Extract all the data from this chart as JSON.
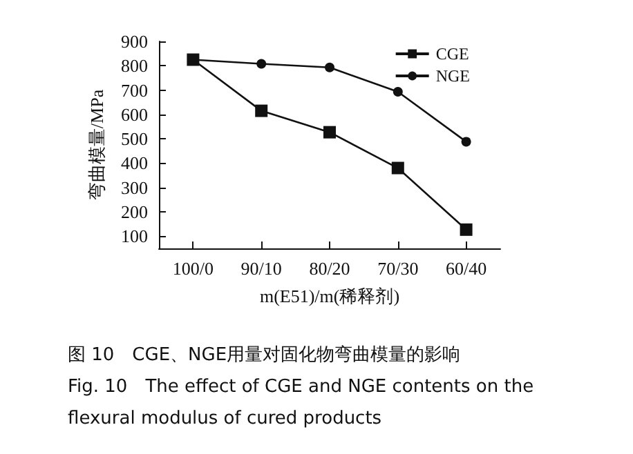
{
  "chart_data": {
    "type": "line",
    "xlabel": "m(E51)/m(稀释剂)",
    "ylabel": "弯曲模量/MPa",
    "categories": [
      "100/0",
      "90/10",
      "80/20",
      "70/30",
      "60/40"
    ],
    "series": [
      {
        "name": "CGE",
        "color": "#111111",
        "marker": "square",
        "values": [
          825,
          615,
          527,
          380,
          127
        ]
      },
      {
        "name": "NGE",
        "color": "#111111",
        "marker": "circle",
        "values": [
          825,
          808,
          793,
          693,
          488
        ]
      }
    ],
    "ylim": [
      50,
      900
    ],
    "yticks": [
      100,
      200,
      300,
      400,
      500,
      600,
      700,
      800,
      900
    ],
    "grid": false,
    "legend": "top right",
    "annotations": [
      "图 10　CGE、NGE用量对固化物弯曲模量的影响",
      "Fig. 10　The effect of CGE and NGE contents on the flexural modulus of cured products"
    ]
  }
}
